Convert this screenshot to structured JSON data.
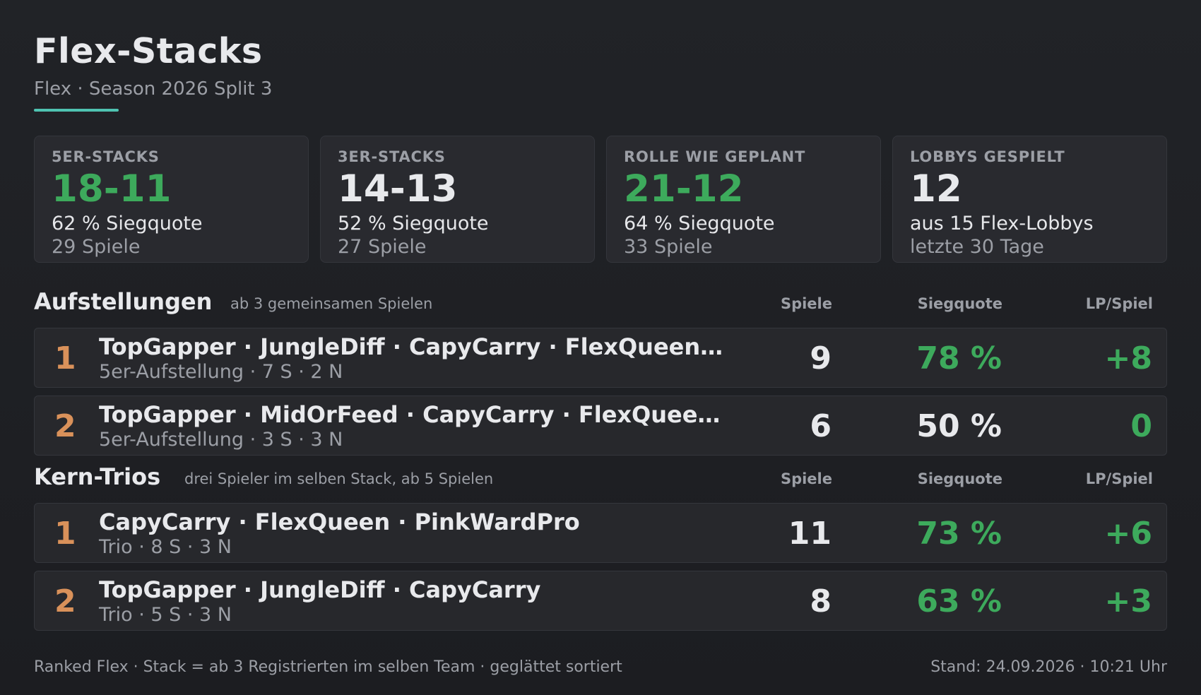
{
  "header": {
    "title": "Flex-Stacks",
    "subtitle": "Flex · Season 2026 Split 3"
  },
  "cards": [
    {
      "label": "5ER-STACKS",
      "value": "18-11",
      "line1": "62 % Siegquote",
      "line2": "29 Spiele",
      "value_color": "green"
    },
    {
      "label": "3ER-STACKS",
      "value": "14-13",
      "line1": "52 % Siegquote",
      "line2": "27 Spiele",
      "value_color": "white"
    },
    {
      "label": "ROLLE WIE GEPLANT",
      "value": "21-12",
      "line1": "64 % Siegquote",
      "line2": "33 Spiele",
      "value_color": "green"
    },
    {
      "label": "LOBBYS GESPIELT",
      "value": "12",
      "line1": "aus 15 Flex-Lobbys",
      "line2": "letzte 30 Tage",
      "value_color": "white"
    }
  ],
  "columns": {
    "games": "Spiele",
    "rate": "Siegquote",
    "lp": "LP/Spiel"
  },
  "lineups": {
    "title": "Aufstellungen",
    "note": "ab 3 gemeinsamen Spielen",
    "rows": [
      {
        "rank": "1",
        "names": "TopGapper · JungleDiff · CapyCarry · FlexQueen…",
        "meta": "5er-Aufstellung · 7 S · 2 N",
        "games": "9",
        "rate": "78 %",
        "lp": "+8"
      },
      {
        "rank": "2",
        "names": "TopGapper · MidOrFeed · CapyCarry · FlexQuee…",
        "meta": "5er-Aufstellung · 3 S · 3 N",
        "games": "6",
        "rate": "50 %",
        "lp": "0"
      }
    ]
  },
  "trios": {
    "title": "Kern-Trios",
    "note": "drei Spieler im selben Stack, ab 5 Spielen",
    "rows": [
      {
        "rank": "1",
        "names": "CapyCarry · FlexQueen · PinkWardPro",
        "meta": "Trio · 8 S · 3 N",
        "games": "11",
        "rate": "73 %",
        "lp": "+6"
      },
      {
        "rank": "2",
        "names": "TopGapper · JungleDiff · CapyCarry",
        "meta": "Trio · 5 S · 3 N",
        "games": "8",
        "rate": "63 %",
        "lp": "+3"
      }
    ]
  },
  "footer": {
    "left": "Ranked Flex · Stack = ab 3 Registrierten im selben Team · geglättet sortiert",
    "right": "Stand: 24.09.2026 · 10:21 Uhr"
  },
  "colors": {
    "accent": "#4fc3b1",
    "positive": "#3daa5c",
    "rank": "#d9915a",
    "background": "#1f2024"
  }
}
